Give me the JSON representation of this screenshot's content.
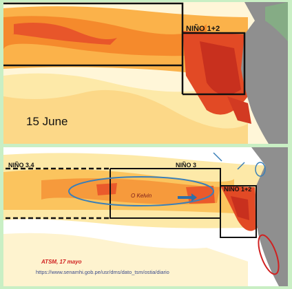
{
  "top_panel": {
    "region_label": "NIÑO 1+2",
    "date_label": "15 June"
  },
  "bottom_panel": {
    "region_labels": [
      "NIÑO 3.4",
      "NIÑO 3",
      "NIÑO 1+2"
    ],
    "feature_label": "O Kelvin",
    "date_label": "ATSM, 17 mayo",
    "source_url": "https://www.senamhi.gob.pe/usr/dms/dato_tsm/ostia/diario"
  }
}
